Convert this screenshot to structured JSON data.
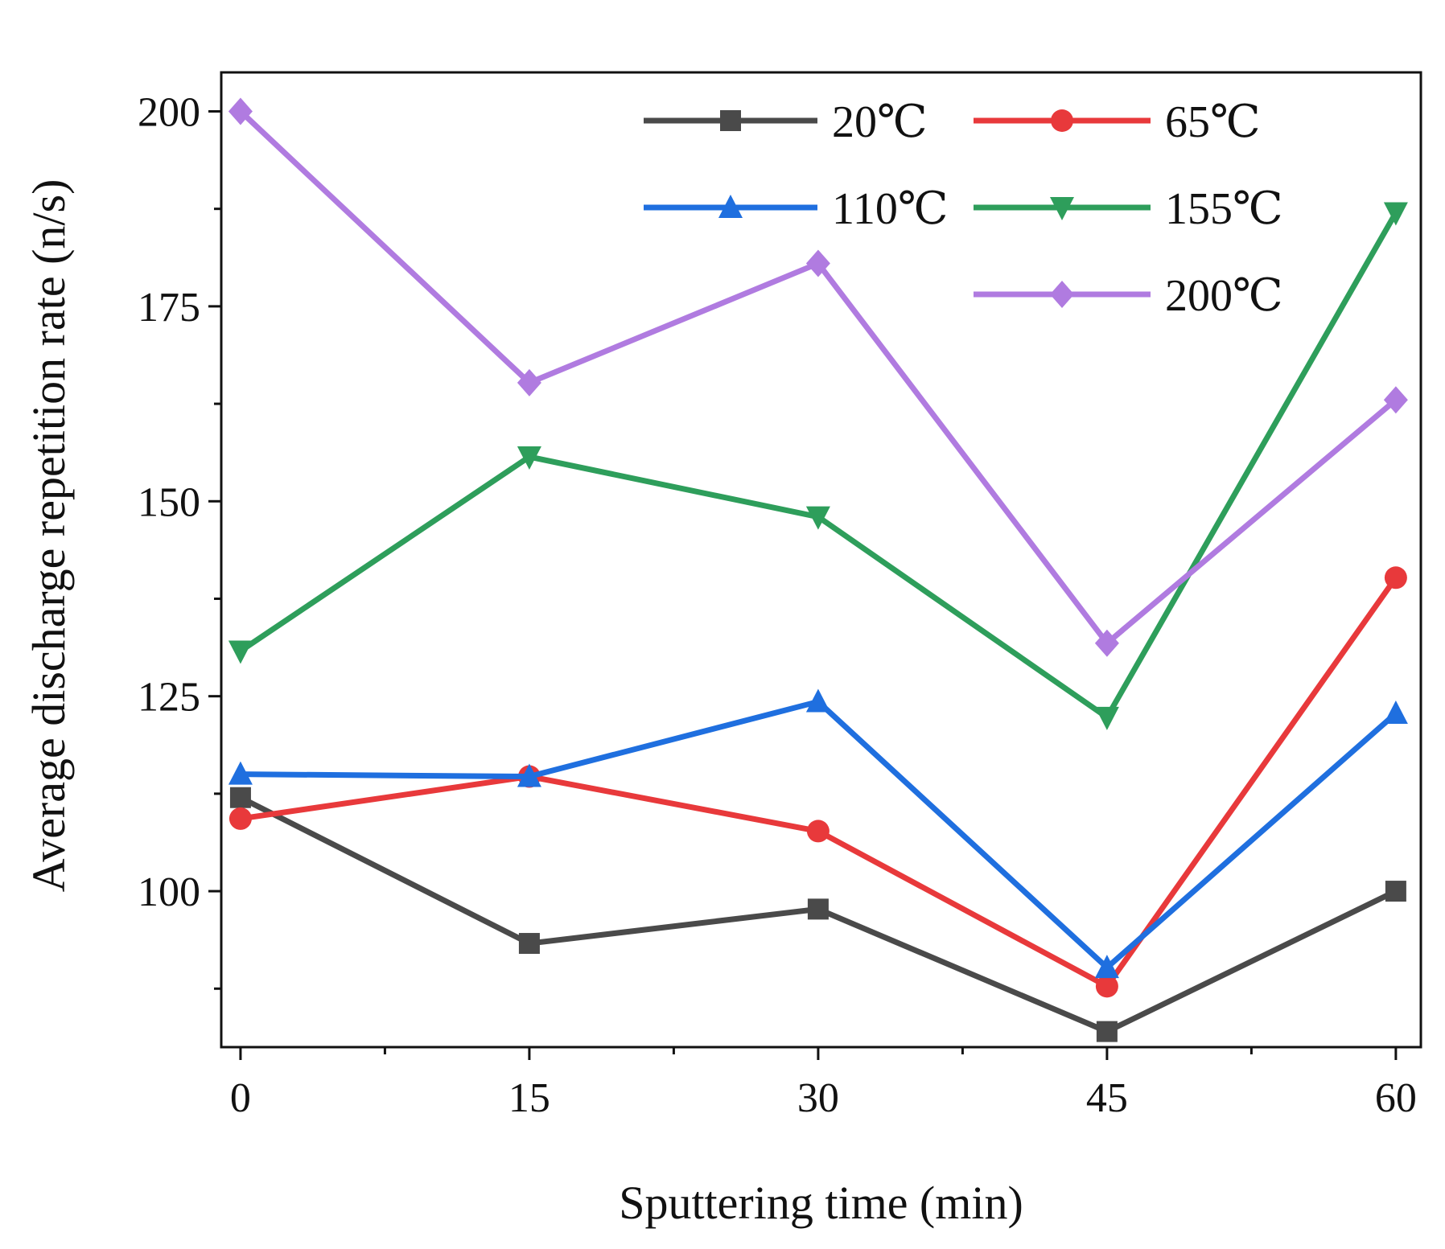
{
  "chart_data": {
    "type": "line",
    "title": "",
    "xlabel": "Sputtering time (min)",
    "ylabel": "Average discharge repetition rate (n/s)",
    "x": [
      0,
      15,
      30,
      45,
      60
    ],
    "xticks": [
      "0",
      "15",
      "30",
      "45",
      "60"
    ],
    "yticks": [
      "100",
      "125",
      "150",
      "175",
      "200"
    ],
    "xlim": [
      -1,
      61.3
    ],
    "ylim": [
      80,
      205
    ],
    "legend_position": "top-right",
    "series": [
      {
        "name": "20℃",
        "color": "#4a4a4a",
        "marker": "square",
        "values": [
          112,
          93.3,
          97.7,
          82,
          100
        ]
      },
      {
        "name": "65℃",
        "color": "#e8393b",
        "marker": "circle",
        "values": [
          109.3,
          114.7,
          107.7,
          87.8,
          140.2
        ]
      },
      {
        "name": "110℃",
        "color": "#1f6fdf",
        "marker": "triangle-up",
        "values": [
          115,
          114.7,
          124.3,
          90.2,
          122.8
        ]
      },
      {
        "name": "155℃",
        "color": "#2e9e5b",
        "marker": "triangle-down",
        "values": [
          130.8,
          155.7,
          148,
          122.3,
          187
        ]
      },
      {
        "name": "200℃",
        "color": "#b07be0",
        "marker": "diamond",
        "values": [
          200,
          165.2,
          180.5,
          131.8,
          163
        ]
      }
    ]
  }
}
